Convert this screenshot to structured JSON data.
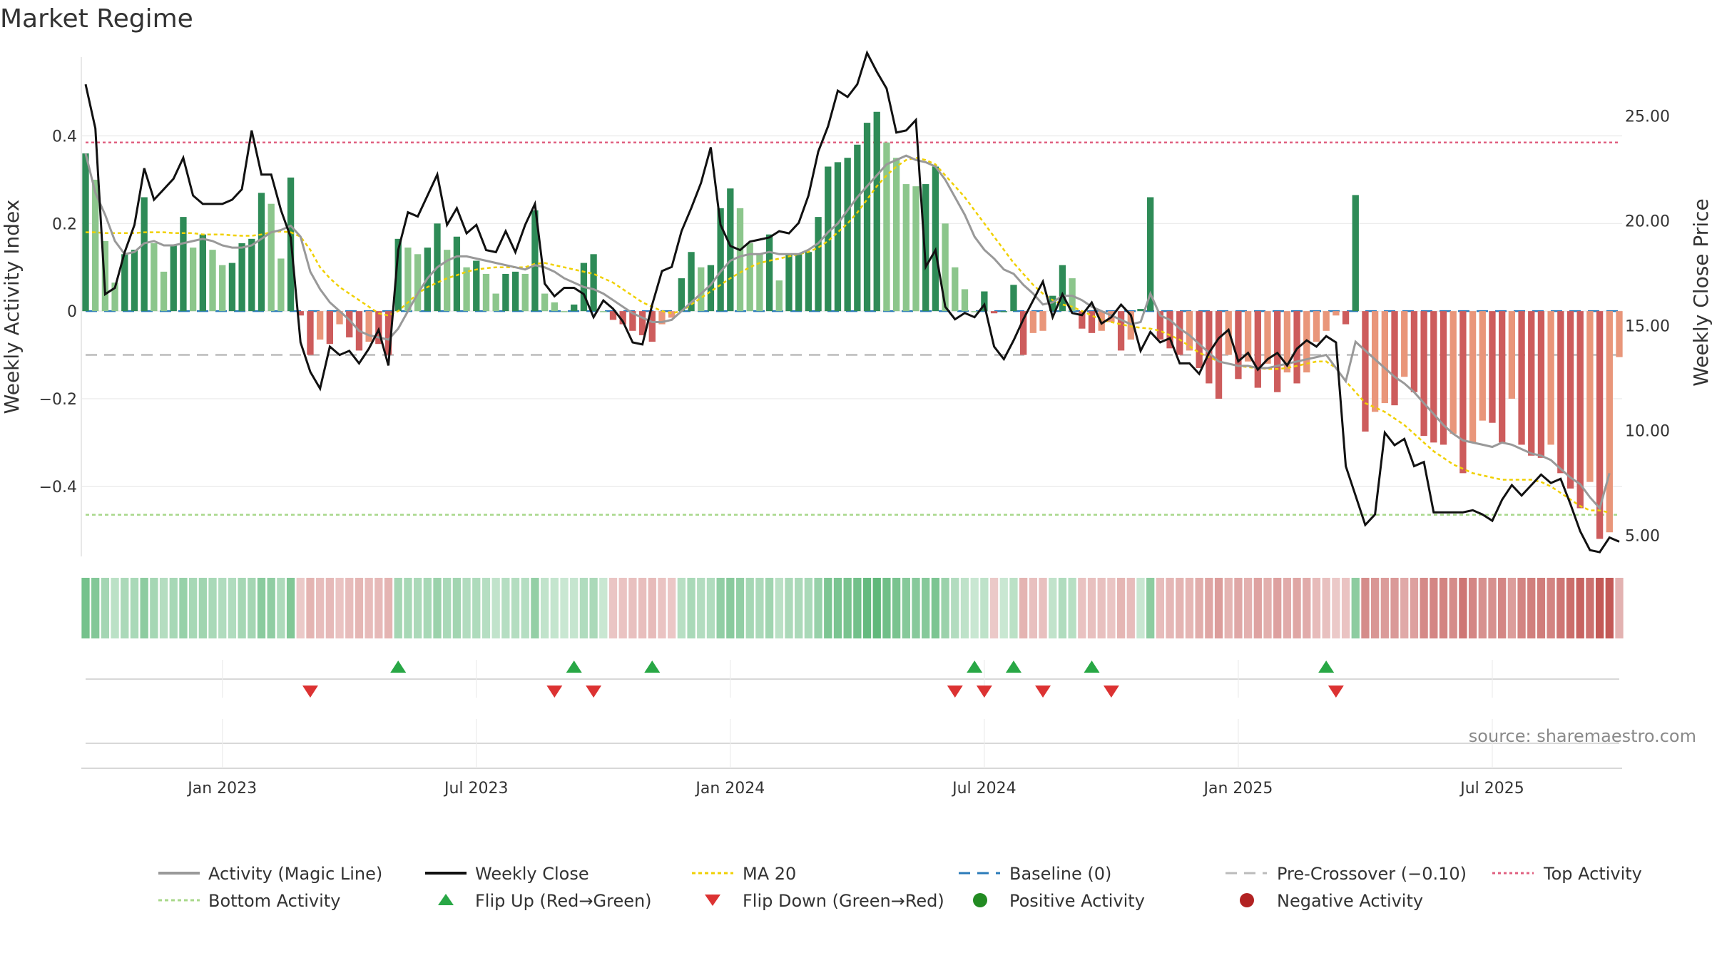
{
  "chart_data": {
    "type": "bar",
    "title": "Market Regime",
    "ylabel_left": "Weekly Activity Index",
    "ylabel_right": "Weekly Close Price",
    "source": "source: sharemaestro.com",
    "ylim_left": [
      -0.56,
      0.58
    ],
    "ylim_right": [
      4.0,
      27.8
    ],
    "left_ticks": [
      {
        "v": 0.4,
        "label": "0.4"
      },
      {
        "v": 0.2,
        "label": "0.2"
      },
      {
        "v": 0,
        "label": "0"
      },
      {
        "v": -0.2,
        "label": "−0.2"
      },
      {
        "v": -0.4,
        "label": "−0.4"
      }
    ],
    "right_ticks": [
      {
        "v": 25,
        "label": "25.00"
      },
      {
        "v": 20,
        "label": "20.00"
      },
      {
        "v": 15,
        "label": "15.00"
      },
      {
        "v": 10,
        "label": "10.00"
      },
      {
        "v": 5,
        "label": "5.00"
      }
    ],
    "x_ticks": [
      {
        "i": 14,
        "label": "Jan 2023"
      },
      {
        "i": 40,
        "label": "Jul 2023"
      },
      {
        "i": 66,
        "label": "Jan 2024"
      },
      {
        "i": 92,
        "label": "Jul 2024"
      },
      {
        "i": 118,
        "label": "Jan 2025"
      },
      {
        "i": 144,
        "label": "Jul 2025"
      }
    ],
    "reference_lines": {
      "top": 0.385,
      "bottom": -0.465,
      "pre_crossover": -0.1,
      "baseline": 0
    },
    "activity": [
      0.36,
      0.3,
      0.16,
      0.065,
      0.13,
      0.14,
      0.26,
      0.155,
      0.09,
      0.15,
      0.215,
      0.145,
      0.175,
      0.14,
      0.105,
      0.11,
      0.155,
      0.165,
      0.27,
      0.245,
      0.12,
      0.305,
      -0.01,
      -0.1,
      -0.065,
      -0.075,
      -0.03,
      -0.06,
      -0.09,
      -0.07,
      -0.075,
      -0.1,
      0.165,
      0.145,
      0.13,
      0.145,
      0.2,
      0.14,
      0.17,
      0.1,
      0.115,
      0.085,
      0.04,
      0.085,
      0.09,
      0.085,
      0.23,
      0.04,
      0.02,
      0.0,
      0.015,
      0.11,
      0.13,
      0.0,
      -0.02,
      -0.03,
      -0.045,
      -0.055,
      -0.07,
      -0.03,
      -0.015,
      0.075,
      0.135,
      0.1,
      0.105,
      0.235,
      0.28,
      0.235,
      0.155,
      0.13,
      0.175,
      0.07,
      0.13,
      0.13,
      0.135,
      0.215,
      0.33,
      0.34,
      0.35,
      0.38,
      0.43,
      0.455,
      0.385,
      0.35,
      0.29,
      0.285,
      0.29,
      0.33,
      0.2,
      0.1,
      0.05,
      0.0,
      0.045,
      -0.005,
      0.0,
      0.06,
      -0.1,
      -0.05,
      -0.045,
      0.035,
      0.105,
      0.075,
      -0.04,
      -0.05,
      -0.045,
      -0.025,
      -0.09,
      -0.065,
      0.005,
      0.26,
      -0.065,
      -0.085,
      -0.1,
      -0.09,
      -0.13,
      -0.165,
      -0.2,
      -0.1,
      -0.155,
      -0.115,
      -0.175,
      -0.12,
      -0.185,
      -0.14,
      -0.165,
      -0.14,
      -0.07,
      -0.045,
      -0.01,
      -0.03,
      0.265,
      -0.275,
      -0.23,
      -0.21,
      -0.215,
      -0.15,
      -0.185,
      -0.285,
      -0.3,
      -0.305,
      -0.28,
      -0.37,
      -0.3,
      -0.25,
      -0.255,
      -0.3,
      -0.2,
      -0.305,
      -0.33,
      -0.335,
      -0.305,
      -0.37,
      -0.405,
      -0.45,
      -0.39,
      -0.52,
      -0.505,
      -0.105
    ],
    "magic_line": [
      0.36,
      0.27,
      0.22,
      0.16,
      0.13,
      0.135,
      0.155,
      0.16,
      0.15,
      0.15,
      0.155,
      0.16,
      0.165,
      0.16,
      0.15,
      0.145,
      0.145,
      0.15,
      0.165,
      0.18,
      0.185,
      0.195,
      0.17,
      0.09,
      0.05,
      0.02,
      0.0,
      -0.02,
      -0.045,
      -0.055,
      -0.06,
      -0.065,
      -0.04,
      -0.0,
      0.04,
      0.075,
      0.1,
      0.115,
      0.125,
      0.125,
      0.12,
      0.115,
      0.11,
      0.105,
      0.1,
      0.095,
      0.105,
      0.1,
      0.09,
      0.075,
      0.065,
      0.055,
      0.05,
      0.04,
      0.025,
      0.01,
      -0.005,
      -0.015,
      -0.025,
      -0.025,
      -0.02,
      0.0,
      0.02,
      0.04,
      0.06,
      0.09,
      0.115,
      0.125,
      0.13,
      0.13,
      0.135,
      0.13,
      0.13,
      0.13,
      0.14,
      0.155,
      0.18,
      0.2,
      0.23,
      0.26,
      0.285,
      0.31,
      0.335,
      0.345,
      0.355,
      0.345,
      0.34,
      0.33,
      0.3,
      0.26,
      0.22,
      0.17,
      0.14,
      0.12,
      0.095,
      0.085,
      0.06,
      0.04,
      0.015,
      0.02,
      0.035,
      0.035,
      0.025,
      0.01,
      0.0,
      -0.01,
      -0.02,
      -0.03,
      -0.025,
      0.04,
      -0.01,
      -0.02,
      -0.04,
      -0.055,
      -0.075,
      -0.095,
      -0.115,
      -0.12,
      -0.125,
      -0.125,
      -0.13,
      -0.13,
      -0.125,
      -0.12,
      -0.115,
      -0.11,
      -0.105,
      -0.1,
      -0.13,
      -0.16,
      -0.07,
      -0.09,
      -0.11,
      -0.13,
      -0.15,
      -0.165,
      -0.185,
      -0.21,
      -0.235,
      -0.26,
      -0.28,
      -0.295,
      -0.3,
      -0.305,
      -0.31,
      -0.3,
      -0.305,
      -0.315,
      -0.325,
      -0.33,
      -0.34,
      -0.36,
      -0.38,
      -0.395,
      -0.425,
      -0.45,
      -0.37
    ],
    "ma20": [
      0.18,
      0.18,
      0.178,
      0.178,
      0.178,
      0.178,
      0.18,
      0.18,
      0.18,
      0.178,
      0.178,
      0.178,
      0.175,
      0.175,
      0.175,
      0.173,
      0.172,
      0.172,
      0.175,
      0.18,
      0.182,
      0.18,
      0.17,
      0.14,
      0.1,
      0.075,
      0.055,
      0.04,
      0.025,
      0.01,
      -0.005,
      -0.01,
      0.0,
      0.02,
      0.04,
      0.055,
      0.065,
      0.075,
      0.082,
      0.09,
      0.095,
      0.098,
      0.1,
      0.1,
      0.1,
      0.1,
      0.108,
      0.11,
      0.105,
      0.1,
      0.095,
      0.09,
      0.085,
      0.075,
      0.065,
      0.05,
      0.035,
      0.02,
      0.01,
      0.0,
      -0.005,
      0.0,
      0.015,
      0.03,
      0.045,
      0.06,
      0.075,
      0.088,
      0.1,
      0.11,
      0.115,
      0.12,
      0.125,
      0.13,
      0.135,
      0.145,
      0.16,
      0.18,
      0.2,
      0.225,
      0.255,
      0.285,
      0.31,
      0.33,
      0.345,
      0.35,
      0.345,
      0.335,
      0.31,
      0.285,
      0.26,
      0.23,
      0.2,
      0.17,
      0.14,
      0.11,
      0.085,
      0.06,
      0.04,
      0.025,
      0.015,
      0.01,
      0.0,
      -0.01,
      -0.02,
      -0.025,
      -0.03,
      -0.035,
      -0.038,
      -0.04,
      -0.045,
      -0.055,
      -0.065,
      -0.08,
      -0.095,
      -0.105,
      -0.115,
      -0.12,
      -0.125,
      -0.128,
      -0.13,
      -0.132,
      -0.132,
      -0.13,
      -0.125,
      -0.12,
      -0.115,
      -0.115,
      -0.13,
      -0.16,
      -0.185,
      -0.21,
      -0.22,
      -0.23,
      -0.245,
      -0.26,
      -0.28,
      -0.3,
      -0.32,
      -0.335,
      -0.35,
      -0.36,
      -0.37,
      -0.375,
      -0.38,
      -0.385,
      -0.385,
      -0.385,
      -0.385,
      -0.39,
      -0.4,
      -0.415,
      -0.43,
      -0.445,
      -0.455,
      -0.455,
      -0.46
    ],
    "weekly_close": [
      26.5,
      24.4,
      16.5,
      16.8,
      18.5,
      19.8,
      22.5,
      21.0,
      21.5,
      22.0,
      23.0,
      21.2,
      20.8,
      20.8,
      20.8,
      21.0,
      21.5,
      24.3,
      22.2,
      22.2,
      20.5,
      19.2,
      14.2,
      12.8,
      12.0,
      14.0,
      13.6,
      13.8,
      13.2,
      13.9,
      14.8,
      13.1,
      18.6,
      20.4,
      20.2,
      21.2,
      22.2,
      19.8,
      20.6,
      19.4,
      19.8,
      18.6,
      18.5,
      19.5,
      18.5,
      19.8,
      20.8,
      17.0,
      16.4,
      16.8,
      16.8,
      16.5,
      15.4,
      16.2,
      15.8,
      15.2,
      14.2,
      14.1,
      16.0,
      17.6,
      17.8,
      19.5,
      20.6,
      21.8,
      23.5,
      19.8,
      18.8,
      18.6,
      19.0,
      19.1,
      19.2,
      19.5,
      19.4,
      19.9,
      21.2,
      23.3,
      24.5,
      26.2,
      25.9,
      26.5,
      28.0,
      27.1,
      26.3,
      24.2,
      24.3,
      24.8,
      17.8,
      18.6,
      15.9,
      15.3,
      15.6,
      15.4,
      16.0,
      14.0,
      13.4,
      14.3,
      15.3,
      16.2,
      17.1,
      15.4,
      16.5,
      15.6,
      15.5,
      16.1,
      15.1,
      15.4,
      16.0,
      15.5,
      13.8,
      14.7,
      14.2,
      14.4,
      13.2,
      13.2,
      12.7,
      13.7,
      14.4,
      14.8,
      13.3,
      13.7,
      12.9,
      13.4,
      13.7,
      13.1,
      13.9,
      14.3,
      14.0,
      14.5,
      14.2,
      8.3,
      6.9,
      5.5,
      6.0,
      9.9,
      9.3,
      9.6,
      8.3,
      8.5,
      6.1,
      6.1,
      6.1,
      6.1,
      6.2,
      6.0,
      5.7,
      6.7,
      7.4,
      6.9,
      7.4,
      7.9,
      7.5,
      7.7,
      6.5,
      5.2,
      4.3,
      4.2,
      4.9,
      4.7
    ],
    "flip_up": [
      32,
      50,
      58,
      91,
      95,
      103,
      127
    ],
    "flip_down": [
      23,
      48,
      52,
      89,
      92,
      98,
      105,
      128
    ]
  },
  "legend": {
    "magic_line": "Activity (Magic Line)",
    "weekly_close": "Weekly Close",
    "ma20": "MA 20",
    "baseline": "Baseline (0)",
    "pre_crossover": "Pre-Crossover (−0.10)",
    "top_activity": "Top Activity",
    "bottom_activity": "Bottom Activity",
    "flip_up": "Flip Up (Red→Green)",
    "flip_down": "Flip Down (Green→Red)",
    "positive_activity": "Positive Activity",
    "negative_activity": "Negative Activity"
  },
  "colors": {
    "green_dark": "#2e8b57",
    "green_light": "#8cc68c",
    "red_dark": "#cd5c5c",
    "red_light": "#e9967a",
    "magic_line": "#999999",
    "weekly_close": "#111111",
    "ma20": "#f0d000",
    "baseline": "#2b7bb9",
    "pre_crossover": "#bbbbbb",
    "top_activity": "#e06080",
    "bottom_activity": "#a8d88a",
    "flip_up": "#28a745",
    "flip_down": "#dc3232",
    "positive_dot": "#228b22",
    "negative_dot": "#b22222"
  }
}
